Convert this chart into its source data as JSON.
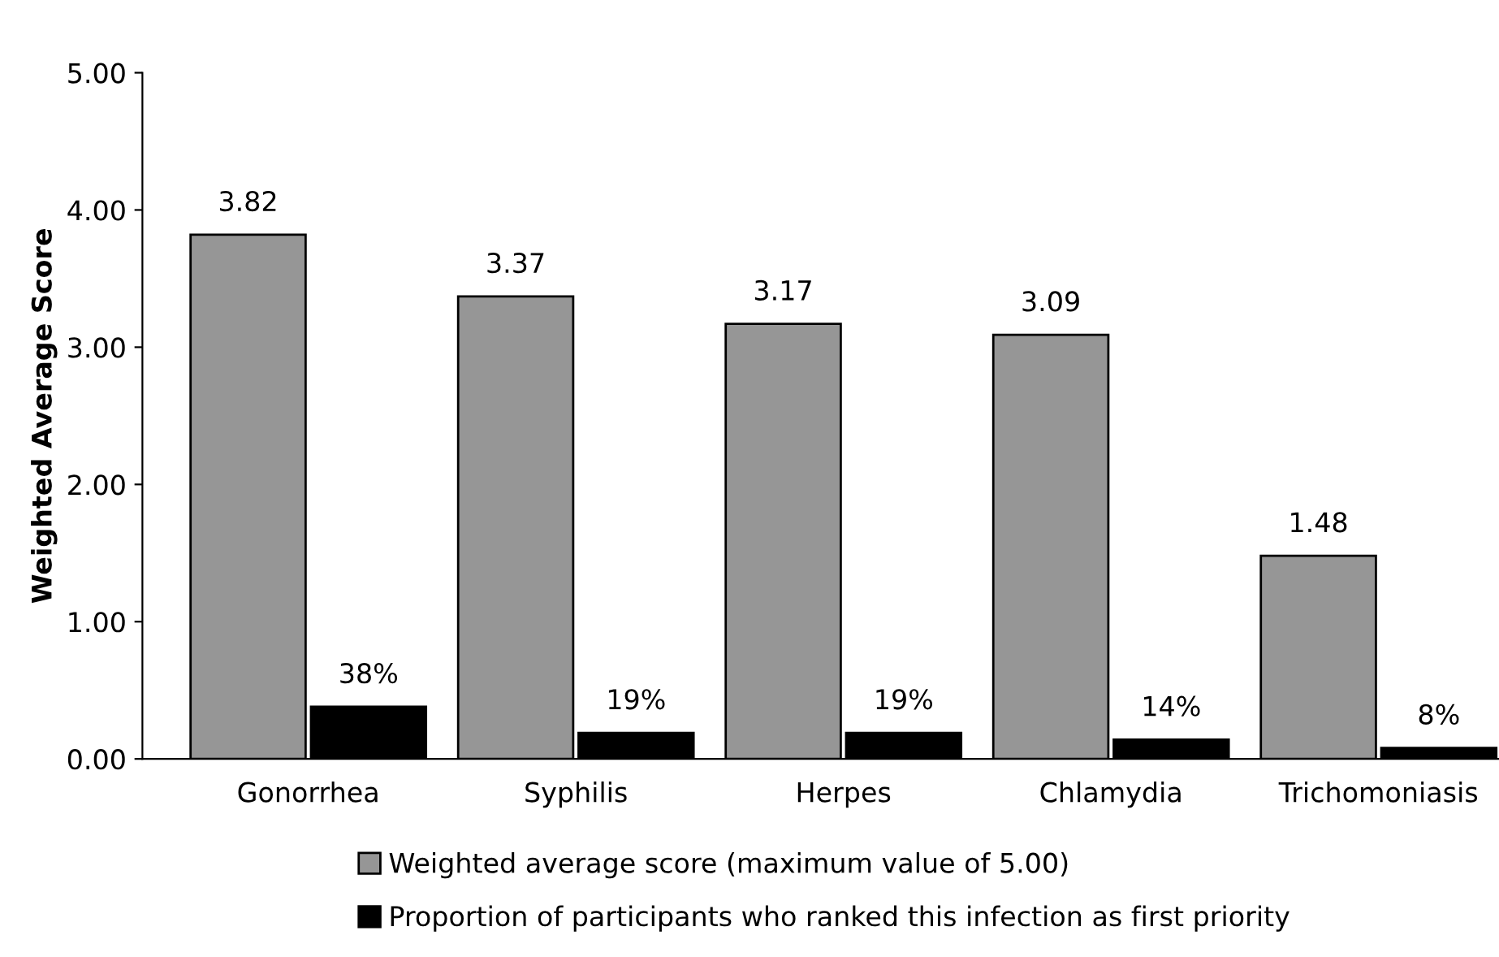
{
  "chart_data": {
    "type": "bar",
    "ylabel": "Weighted Average Score",
    "categories": [
      "Gonorrhea",
      "Syphilis",
      "Herpes",
      "Chlamydia",
      "Trichomoniasis"
    ],
    "series": [
      {
        "name": "Weighted average score (maximum value of 5.00)",
        "color": "#969696",
        "values": [
          3.82,
          3.37,
          3.17,
          3.09,
          1.48
        ],
        "value_labels": [
          "3.82",
          "3.37",
          "3.17",
          "3.09",
          "1.48"
        ]
      },
      {
        "name": "Proportion of participants who ranked this infection as first priority",
        "color": "#000000",
        "values": [
          0.38,
          0.19,
          0.19,
          0.14,
          0.08
        ],
        "value_labels": [
          "38%",
          "19%",
          "19%",
          "14%",
          "8%"
        ]
      }
    ],
    "ylim": [
      0,
      5
    ],
    "yticks": [
      {
        "value": 0,
        "label": "0.00"
      },
      {
        "value": 1,
        "label": "1.00"
      },
      {
        "value": 2,
        "label": "2.00"
      },
      {
        "value": 3,
        "label": "3.00"
      },
      {
        "value": 4,
        "label": "4.00"
      },
      {
        "value": 5,
        "label": "5.00"
      }
    ],
    "grid": false,
    "legend": "bottom"
  }
}
